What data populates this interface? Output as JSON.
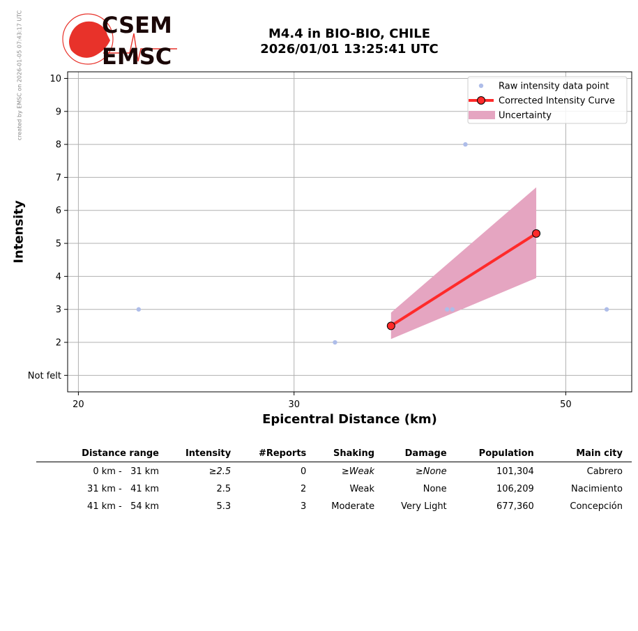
{
  "watermark": "created by EMSC on 2026-01-05 07:43:17 UTC",
  "logo": {
    "text_top": "CSEM",
    "text_bottom": "EMSC"
  },
  "title": {
    "line1": "M4.4 in BIO-BIO, CHILE",
    "line2": "2026/01/01 13:25:41 UTC"
  },
  "colors": {
    "raw": "#aebde9",
    "curve": "#ff2a2a",
    "uncertainty": "#e5a5c1",
    "grid": "#b0b0b0"
  },
  "chart_data": {
    "type": "scatter",
    "xlabel": "Epicentral Distance (km)",
    "ylabel": "Intensity",
    "x_scale": "log",
    "xlim": [
      19.6,
      56.6
    ],
    "ylim": [
      0.5,
      10.2
    ],
    "x_ticks": [
      {
        "value": 20,
        "label": "20"
      },
      {
        "value": 30,
        "label": "30"
      },
      {
        "value": 50,
        "label": "50"
      }
    ],
    "y_ticks": [
      {
        "value": 1,
        "label": "Not felt"
      },
      {
        "value": 2,
        "label": "2"
      },
      {
        "value": 3,
        "label": "3"
      },
      {
        "value": 4,
        "label": "4"
      },
      {
        "value": 5,
        "label": "5"
      },
      {
        "value": 6,
        "label": "6"
      },
      {
        "value": 7,
        "label": "7"
      },
      {
        "value": 8,
        "label": "8"
      },
      {
        "value": 9,
        "label": "9"
      },
      {
        "value": 10,
        "label": "10"
      }
    ],
    "grid": true,
    "legend_position": "top-right",
    "series": [
      {
        "name": "Raw intensity data point",
        "kind": "points",
        "points": [
          [
            22.4,
            3
          ],
          [
            32.4,
            2
          ],
          [
            40.0,
            3
          ],
          [
            40.4,
            3
          ],
          [
            41.4,
            8
          ],
          [
            54.0,
            3
          ]
        ]
      },
      {
        "name": "Corrected Intensity Curve",
        "kind": "line",
        "points": [
          [
            36.0,
            2.5
          ],
          [
            47.3,
            5.3
          ]
        ]
      },
      {
        "name": "Uncertainty",
        "kind": "band",
        "x": [
          36.0,
          47.3
        ],
        "upper": [
          2.9,
          6.7
        ],
        "lower": [
          2.1,
          3.95
        ]
      }
    ]
  },
  "table": {
    "headers": [
      "Distance range",
      "Intensity",
      "#Reports",
      "Shaking",
      "Damage",
      "Population",
      "Main city"
    ],
    "rows": [
      {
        "range": "0 km -   31 km",
        "intensity": "≥2.5",
        "reports": "0",
        "shaking": "≥Weak",
        "damage": "≥None",
        "population": "101,304",
        "city": "Cabrero"
      },
      {
        "range": "31 km -   41 km",
        "intensity": "2.5",
        "reports": "2",
        "shaking": "Weak",
        "damage": "None",
        "population": "106,209",
        "city": "Nacimiento"
      },
      {
        "range": "41 km -   54 km",
        "intensity": "5.3",
        "reports": "3",
        "shaking": "Moderate",
        "damage": "Very Light",
        "population": "677,360",
        "city": "Concepción"
      }
    ]
  }
}
